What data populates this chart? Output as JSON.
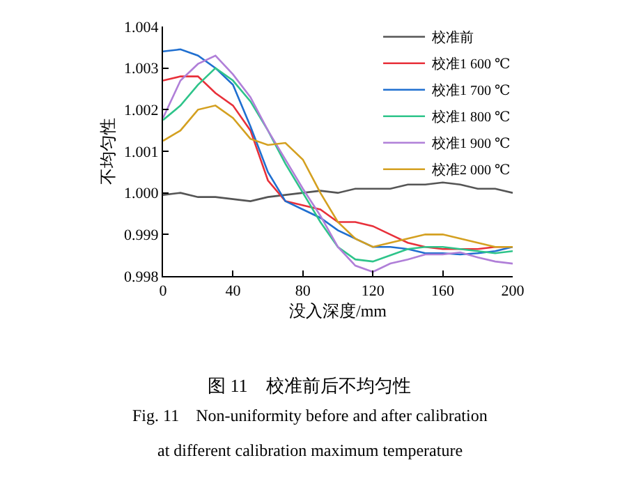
{
  "chart_data": {
    "type": "line",
    "xlabel": "没入深度/mm",
    "ylabel": "不均匀性",
    "x": [
      0,
      10,
      20,
      30,
      40,
      50,
      60,
      70,
      80,
      90,
      100,
      110,
      120,
      130,
      140,
      150,
      160,
      170,
      180,
      190,
      200
    ],
    "series": [
      {
        "name": "校准前",
        "color": "#555555",
        "values": [
          0.99995,
          1.0,
          0.9999,
          0.9999,
          0.99985,
          0.9998,
          0.9999,
          0.99995,
          1.0,
          1.00005,
          1.0,
          1.0001,
          1.0001,
          1.0001,
          1.0002,
          1.0002,
          1.00025,
          1.0002,
          1.0001,
          1.0001,
          1.0
        ]
      },
      {
        "name": "校准1 600 ℃",
        "color": "#e8303a",
        "values": [
          1.0027,
          1.0028,
          1.0028,
          1.0024,
          1.0021,
          1.0015,
          1.0003,
          0.9998,
          0.9997,
          0.9996,
          0.9993,
          0.9993,
          0.9992,
          0.999,
          0.9988,
          0.9987,
          0.99865,
          0.99865,
          0.99865,
          0.9987,
          0.9987
        ]
      },
      {
        "name": "校准1 700 ℃",
        "color": "#1f6fd0",
        "values": [
          1.0034,
          1.00345,
          1.0033,
          1.003,
          1.0026,
          1.0016,
          1.0005,
          0.9998,
          0.9996,
          0.9994,
          0.9991,
          0.9989,
          0.9987,
          0.9987,
          0.99865,
          0.99855,
          0.99855,
          0.99852,
          0.99855,
          0.9986,
          0.9987
        ]
      },
      {
        "name": "校准1 800 ℃",
        "color": "#2ec48a",
        "values": [
          1.00175,
          1.0021,
          1.0026,
          1.003,
          1.0027,
          1.0022,
          1.0015,
          1.0007,
          1.0,
          0.9993,
          0.9987,
          0.9984,
          0.99835,
          0.9985,
          0.99865,
          0.9987,
          0.9987,
          0.99865,
          0.9986,
          0.99855,
          0.9986
        ]
      },
      {
        "name": "校准1 900 ℃",
        "color": "#b07fd8",
        "values": [
          1.0018,
          1.0027,
          1.0031,
          1.0033,
          1.00285,
          1.0023,
          1.0015,
          1.0008,
          1.0001,
          0.99945,
          0.9987,
          0.99825,
          0.9981,
          0.9983,
          0.9984,
          0.99852,
          0.99852,
          0.99857,
          0.99845,
          0.99835,
          0.9983
        ]
      },
      {
        "name": "校准2 000 ℃",
        "color": "#d4a020",
        "values": [
          1.00125,
          1.0015,
          1.002,
          1.0021,
          1.0018,
          1.0013,
          1.00115,
          1.0012,
          1.0008,
          1.0,
          0.9993,
          0.9989,
          0.9987,
          0.9988,
          0.9989,
          0.999,
          0.999,
          0.9989,
          0.9988,
          0.9987,
          0.9987
        ]
      }
    ],
    "xlim": [
      0,
      200
    ],
    "xticks": [
      0,
      40,
      80,
      120,
      160,
      200
    ],
    "ylim": [
      0.998,
      1.004
    ],
    "yticks": [
      {
        "value": 0.998,
        "label": "0.998"
      },
      {
        "value": 0.999,
        "label": "0.999"
      },
      {
        "value": 1.0,
        "label": "1.000"
      },
      {
        "value": 1.001,
        "label": "1.001"
      },
      {
        "value": 1.002,
        "label": "1.002"
      },
      {
        "value": 1.003,
        "label": "1.003"
      },
      {
        "value": 1.004,
        "label": "1.004"
      }
    ],
    "grid": false,
    "legend": "top right",
    "marker": "none",
    "line_style": "solid",
    "annotations": [
      "图 11　校准前后不均匀性",
      "Fig. 11　Non-uniformity before and after calibration",
      "at different calibration maximum temperature"
    ]
  }
}
